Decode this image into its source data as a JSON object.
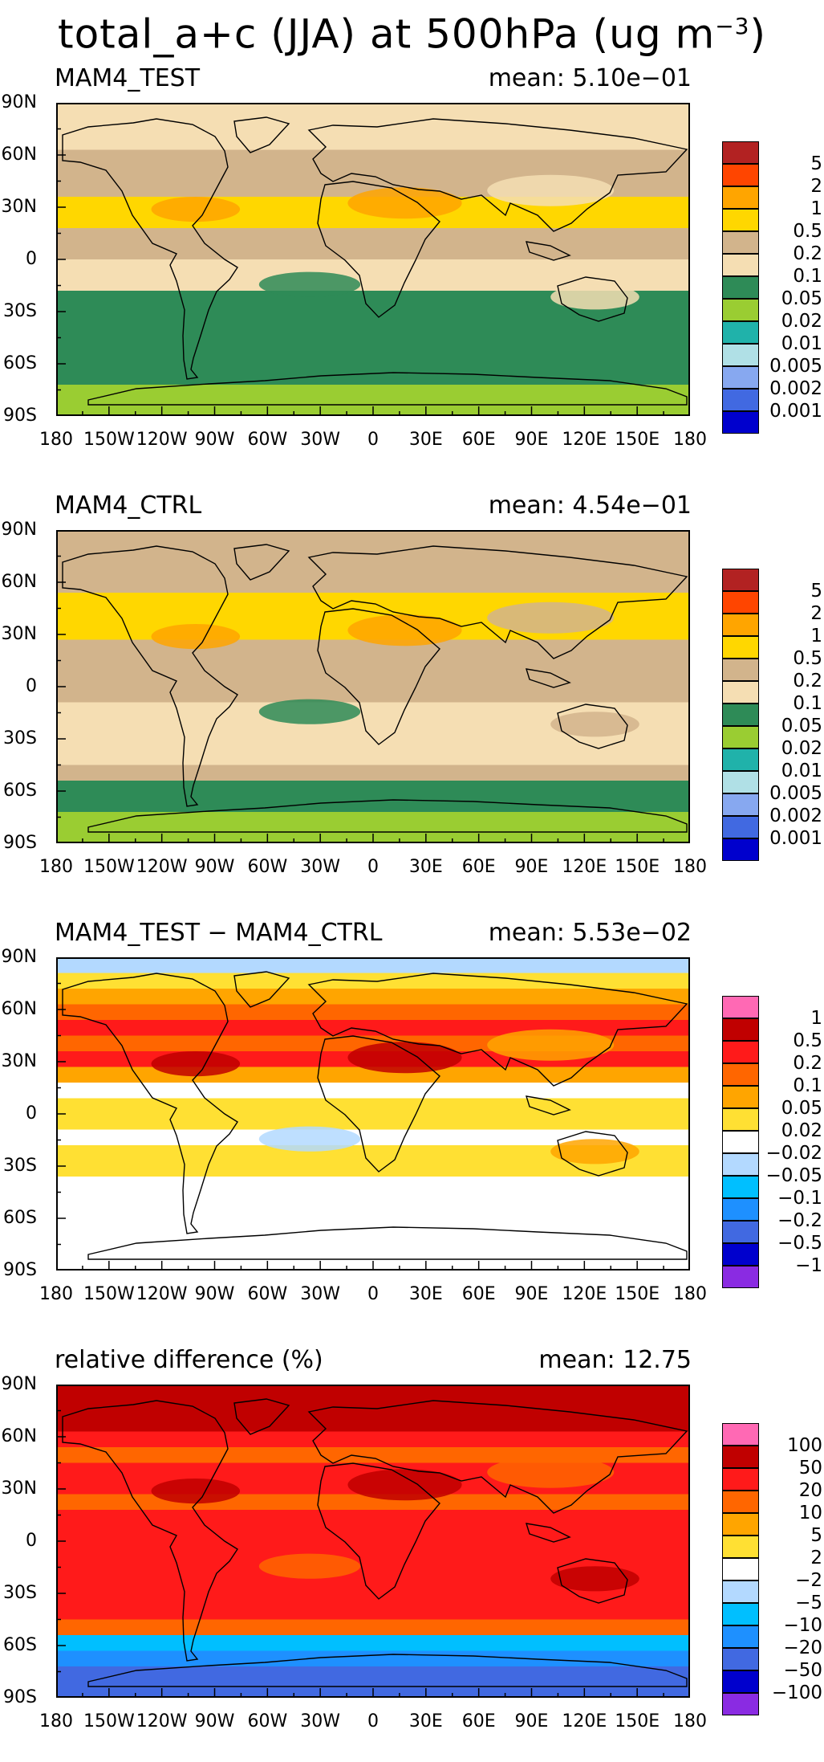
{
  "figure_title": "total_a+c (JJA) at 500hPa (ug m",
  "figure_title_unit_exp": "−3",
  "figure_title_close": ")",
  "chart_data": [
    {
      "type": "heatmap",
      "title": "MAM4_TEST",
      "mean_label": "mean: 5.10e−01",
      "x_ticks": [
        "180",
        "150W",
        "120W",
        "90W",
        "60W",
        "30W",
        "0",
        "30E",
        "60E",
        "90E",
        "120E",
        "150E",
        "180"
      ],
      "y_ticks": [
        "90N",
        "60N",
        "30N",
        "0",
        "30S",
        "60S",
        "90S"
      ],
      "colorbar_labels": [
        "5",
        "2",
        "1",
        "0.5",
        "0.2",
        "0.1",
        "0.05",
        "0.02",
        "0.01",
        "0.005",
        "0.002",
        "0.001"
      ],
      "colorbar_colors": [
        "#b22222",
        "#ff4500",
        "#ffa500",
        "#ffd700",
        "#d2b48c",
        "#f5deb3",
        "#2e8b57",
        "#9acd32",
        "#20b2aa",
        "#b0e0e6",
        "#87a8f0",
        "#4169e1",
        "#0000cd"
      ],
      "lat_band_levels": [
        5,
        5,
        5,
        4,
        4,
        4,
        3,
        3,
        4,
        4,
        5,
        5,
        6,
        6,
        6,
        6,
        6,
        6,
        7,
        7
      ]
    },
    {
      "type": "heatmap",
      "title": "MAM4_CTRL",
      "mean_label": "mean: 4.54e−01",
      "x_ticks": [
        "180",
        "150W",
        "120W",
        "90W",
        "60W",
        "30W",
        "0",
        "30E",
        "60E",
        "90E",
        "120E",
        "150E",
        "180"
      ],
      "y_ticks": [
        "90N",
        "60N",
        "30N",
        "0",
        "30S",
        "60S",
        "90S"
      ],
      "colorbar_labels": [
        "5",
        "2",
        "1",
        "0.5",
        "0.2",
        "0.1",
        "0.05",
        "0.02",
        "0.01",
        "0.005",
        "0.002",
        "0.001"
      ],
      "colorbar_colors": [
        "#b22222",
        "#ff4500",
        "#ffa500",
        "#ffd700",
        "#d2b48c",
        "#f5deb3",
        "#2e8b57",
        "#9acd32",
        "#20b2aa",
        "#b0e0e6",
        "#87a8f0",
        "#4169e1",
        "#0000cd"
      ],
      "lat_band_levels": [
        4,
        4,
        4,
        4,
        3,
        3,
        3,
        4,
        4,
        4,
        4,
        5,
        5,
        5,
        5,
        4,
        6,
        6,
        7,
        7
      ]
    },
    {
      "type": "heatmap",
      "title": "MAM4_TEST − MAM4_CTRL",
      "mean_label": "mean: 5.53e−02",
      "x_ticks": [
        "180",
        "150W",
        "120W",
        "90W",
        "60W",
        "30W",
        "0",
        "30E",
        "60E",
        "90E",
        "120E",
        "150E",
        "180"
      ],
      "y_ticks": [
        "90N",
        "60N",
        "30N",
        "0",
        "30S",
        "60S",
        "90S"
      ],
      "colorbar_labels": [
        "1",
        "0.5",
        "0.2",
        "0.1",
        "0.05",
        "0.02",
        "−0.02",
        "−0.05",
        "−0.1",
        "−0.2",
        "−0.5",
        "−1"
      ],
      "colorbar_colors": [
        "#ff69b4",
        "#c00000",
        "#ff1a1a",
        "#ff6600",
        "#ffa500",
        "#ffe033",
        "#ffffff",
        "#b3d9ff",
        "#00bfff",
        "#1e90ff",
        "#4169e1",
        "#0000cd",
        "#8a2be2"
      ],
      "lat_band_levels": [
        7,
        5,
        4,
        3,
        2,
        3,
        2,
        4,
        6,
        5,
        5,
        6,
        5,
        5,
        6,
        6,
        6,
        6,
        6,
        6
      ]
    },
    {
      "type": "heatmap",
      "title": "relative difference (%)",
      "mean_label": "mean: 12.75",
      "x_ticks": [
        "180",
        "150W",
        "120W",
        "90W",
        "60W",
        "30W",
        "0",
        "30E",
        "60E",
        "90E",
        "120E",
        "150E",
        "180"
      ],
      "y_ticks": [
        "90N",
        "60N",
        "30N",
        "0",
        "30S",
        "60S",
        "90S"
      ],
      "colorbar_labels": [
        "100",
        "50",
        "20",
        "10",
        "5",
        "2",
        "−2",
        "−5",
        "−10",
        "−20",
        "−50",
        "−100"
      ],
      "colorbar_colors": [
        "#ff69b4",
        "#c00000",
        "#ff1a1a",
        "#ff6600",
        "#ffa500",
        "#ffe033",
        "#ffffff",
        "#b3d9ff",
        "#00bfff",
        "#1e90ff",
        "#4169e1",
        "#0000cd",
        "#8a2be2"
      ],
      "lat_band_levels": [
        1,
        1,
        1,
        2,
        3,
        2,
        2,
        3,
        2,
        2,
        2,
        2,
        2,
        2,
        2,
        3,
        8,
        9,
        10,
        10
      ]
    }
  ]
}
